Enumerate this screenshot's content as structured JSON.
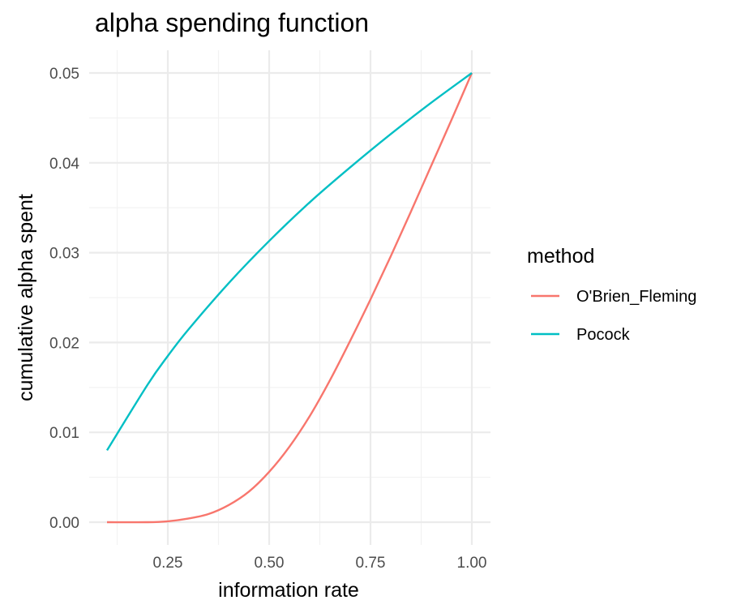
{
  "chart_data": {
    "type": "line",
    "title": "alpha spending function",
    "xlabel": "information rate",
    "ylabel": "cumulative alpha spent",
    "xlim": [
      0.1,
      1.0
    ],
    "ylim": [
      0,
      0.05
    ],
    "x_ticks": [
      "0.25",
      "0.50",
      "0.75",
      "1.00"
    ],
    "y_ticks": [
      "0.00",
      "0.01",
      "0.02",
      "0.03",
      "0.04",
      "0.05"
    ],
    "grid": true,
    "legend": {
      "title": "method",
      "position": "right"
    },
    "series": [
      {
        "name": "O'Brien_Fleming",
        "color": "#F8766D",
        "x": [
          0.1,
          0.2,
          0.25,
          0.3,
          0.35,
          0.4,
          0.45,
          0.5,
          0.55,
          0.6,
          0.65,
          0.7,
          0.75,
          0.8,
          0.85,
          0.9,
          0.95,
          1.0
        ],
        "y": [
          0.0,
          0.0,
          0.0001,
          0.0004,
          0.0009,
          0.0019,
          0.0034,
          0.0056,
          0.0084,
          0.0118,
          0.0158,
          0.0202,
          0.0248,
          0.0296,
          0.0346,
          0.0397,
          0.0448,
          0.05
        ]
      },
      {
        "name": "Pocock",
        "color": "#00BFC4",
        "x": [
          0.1,
          0.2,
          0.25,
          0.3,
          0.4,
          0.5,
          0.6,
          0.7,
          0.8,
          0.9,
          1.0
        ],
        "y": [
          0.008,
          0.0153,
          0.0185,
          0.0214,
          0.0266,
          0.0313,
          0.0356,
          0.0395,
          0.0432,
          0.0467,
          0.05
        ]
      }
    ]
  }
}
